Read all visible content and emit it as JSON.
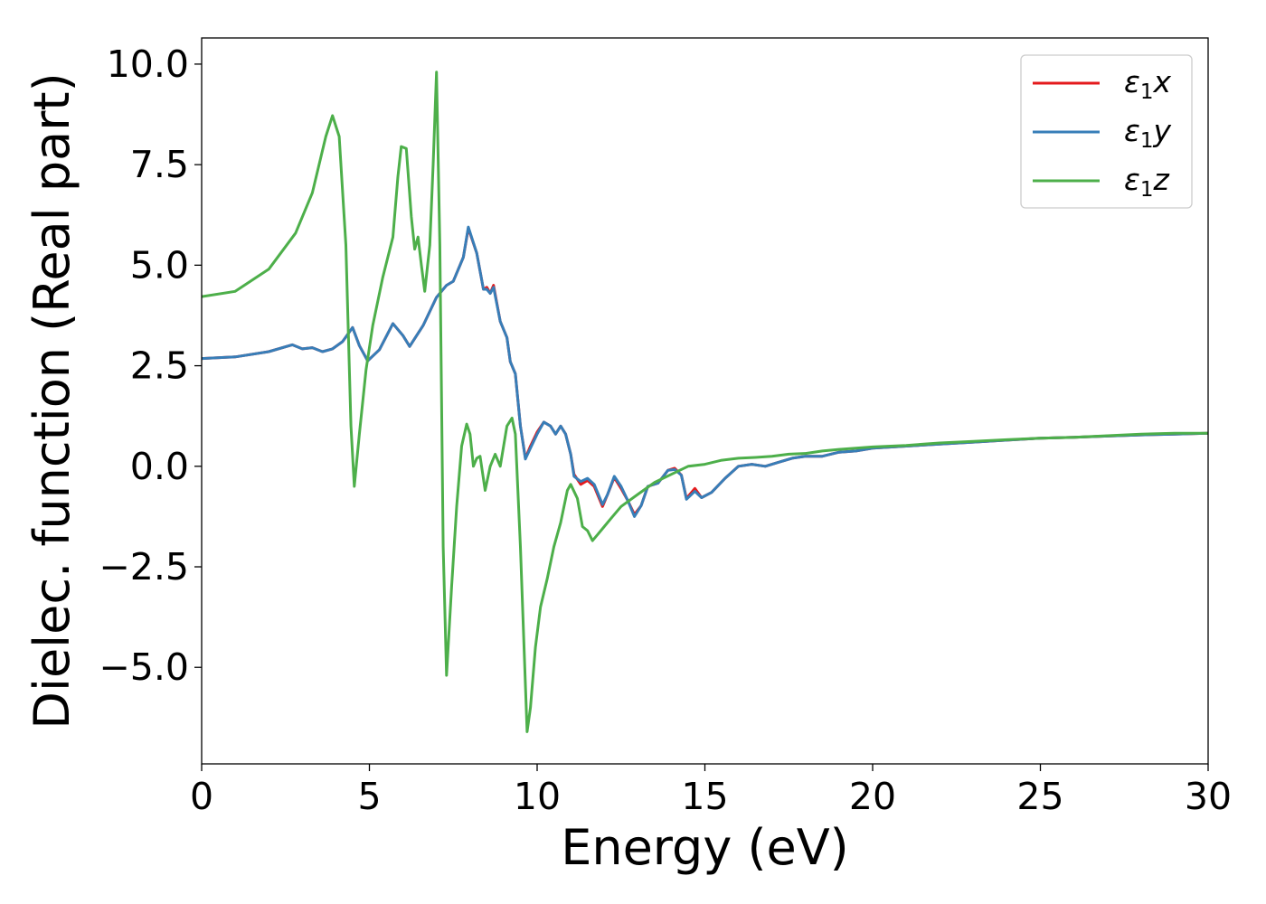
{
  "chart_data": {
    "type": "line",
    "xlabel": "Energy (eV)",
    "ylabel": "Dielec. function (Real part)",
    "xlim": [
      0,
      30
    ],
    "ylim": [
      -7.4,
      10.65
    ],
    "x_ticks": [
      0,
      5,
      10,
      15,
      20,
      25,
      30
    ],
    "x_tick_labels": [
      "0",
      "5",
      "10",
      "15",
      "20",
      "25",
      "30"
    ],
    "y_ticks": [
      10.0,
      7.5,
      5.0,
      2.5,
      0.0,
      -2.5,
      -5.0
    ],
    "y_tick_labels": [
      "10.0",
      "7.5",
      "5.0",
      "2.5",
      "0.0",
      "−2.5",
      "−5.0"
    ],
    "grid": false,
    "legend_position": "top-right",
    "series": [
      {
        "name": "ε₁x",
        "legend_main": "ε",
        "legend_sub": "1",
        "legend_var": "x",
        "color": "#e41a1c",
        "points": [
          [
            0,
            2.68
          ],
          [
            1,
            2.72
          ],
          [
            2,
            2.85
          ],
          [
            2.7,
            3.02
          ],
          [
            3.0,
            2.92
          ],
          [
            3.3,
            2.95
          ],
          [
            3.6,
            2.85
          ],
          [
            3.9,
            2.92
          ],
          [
            4.2,
            3.1
          ],
          [
            4.5,
            3.45
          ],
          [
            4.7,
            3.0
          ],
          [
            4.95,
            2.62
          ],
          [
            5.3,
            2.9
          ],
          [
            5.7,
            3.55
          ],
          [
            6.0,
            3.25
          ],
          [
            6.2,
            2.98
          ],
          [
            6.6,
            3.5
          ],
          [
            7.0,
            4.2
          ],
          [
            7.3,
            4.5
          ],
          [
            7.5,
            4.6
          ],
          [
            7.8,
            5.2
          ],
          [
            7.95,
            5.92
          ],
          [
            8.2,
            5.3
          ],
          [
            8.4,
            4.4
          ],
          [
            8.5,
            4.45
          ],
          [
            8.6,
            4.3
          ],
          [
            8.7,
            4.5
          ],
          [
            8.9,
            3.6
          ],
          [
            9.1,
            3.2
          ],
          [
            9.2,
            2.6
          ],
          [
            9.35,
            2.3
          ],
          [
            9.5,
            1.0
          ],
          [
            9.65,
            0.2
          ],
          [
            9.8,
            0.5
          ],
          [
            10.0,
            0.85
          ],
          [
            10.2,
            1.1
          ],
          [
            10.4,
            1.0
          ],
          [
            10.55,
            0.8
          ],
          [
            10.7,
            1.0
          ],
          [
            10.85,
            0.8
          ],
          [
            11.0,
            0.3
          ],
          [
            11.1,
            -0.2
          ],
          [
            11.3,
            -0.45
          ],
          [
            11.5,
            -0.35
          ],
          [
            11.7,
            -0.5
          ],
          [
            11.95,
            -1.0
          ],
          [
            12.1,
            -0.7
          ],
          [
            12.3,
            -0.28
          ],
          [
            12.5,
            -0.55
          ],
          [
            12.7,
            -0.85
          ],
          [
            12.9,
            -1.2
          ],
          [
            13.1,
            -0.98
          ],
          [
            13.3,
            -0.5
          ],
          [
            13.6,
            -0.42
          ],
          [
            13.9,
            -0.1
          ],
          [
            14.1,
            -0.05
          ],
          [
            14.3,
            -0.22
          ],
          [
            14.45,
            -0.8
          ],
          [
            14.7,
            -0.55
          ],
          [
            14.9,
            -0.78
          ],
          [
            15.2,
            -0.65
          ],
          [
            15.6,
            -0.3
          ],
          [
            16.0,
            0.0
          ],
          [
            16.4,
            0.05
          ],
          [
            16.8,
            0.0
          ],
          [
            17.2,
            0.1
          ],
          [
            17.6,
            0.2
          ],
          [
            18.0,
            0.25
          ],
          [
            18.5,
            0.25
          ],
          [
            19.0,
            0.35
          ],
          [
            19.5,
            0.38
          ],
          [
            20.0,
            0.45
          ],
          [
            21.0,
            0.5
          ],
          [
            22.0,
            0.55
          ],
          [
            23.0,
            0.6
          ],
          [
            24.0,
            0.65
          ],
          [
            25.0,
            0.7
          ],
          [
            26.0,
            0.72
          ],
          [
            27.0,
            0.75
          ],
          [
            28.0,
            0.78
          ],
          [
            29.0,
            0.8
          ],
          [
            30.0,
            0.82
          ]
        ]
      },
      {
        "name": "ε₁y",
        "legend_main": "ε",
        "legend_sub": "1",
        "legend_var": "y",
        "color": "#377eb8",
        "points": [
          [
            0,
            2.68
          ],
          [
            1,
            2.72
          ],
          [
            2,
            2.85
          ],
          [
            2.7,
            3.02
          ],
          [
            3.0,
            2.92
          ],
          [
            3.3,
            2.95
          ],
          [
            3.6,
            2.85
          ],
          [
            3.9,
            2.92
          ],
          [
            4.2,
            3.1
          ],
          [
            4.5,
            3.45
          ],
          [
            4.7,
            3.0
          ],
          [
            4.95,
            2.62
          ],
          [
            5.3,
            2.9
          ],
          [
            5.7,
            3.55
          ],
          [
            6.0,
            3.25
          ],
          [
            6.2,
            2.98
          ],
          [
            6.6,
            3.5
          ],
          [
            7.0,
            4.2
          ],
          [
            7.3,
            4.5
          ],
          [
            7.5,
            4.6
          ],
          [
            7.8,
            5.2
          ],
          [
            7.95,
            5.95
          ],
          [
            8.2,
            5.3
          ],
          [
            8.4,
            4.4
          ],
          [
            8.5,
            4.4
          ],
          [
            8.6,
            4.3
          ],
          [
            8.7,
            4.45
          ],
          [
            8.9,
            3.6
          ],
          [
            9.1,
            3.2
          ],
          [
            9.2,
            2.6
          ],
          [
            9.35,
            2.3
          ],
          [
            9.5,
            1.0
          ],
          [
            9.65,
            0.18
          ],
          [
            9.8,
            0.45
          ],
          [
            10.0,
            0.8
          ],
          [
            10.2,
            1.1
          ],
          [
            10.4,
            1.0
          ],
          [
            10.55,
            0.8
          ],
          [
            10.7,
            1.0
          ],
          [
            10.85,
            0.8
          ],
          [
            11.0,
            0.3
          ],
          [
            11.1,
            -0.25
          ],
          [
            11.3,
            -0.38
          ],
          [
            11.5,
            -0.3
          ],
          [
            11.7,
            -0.45
          ],
          [
            11.95,
            -0.95
          ],
          [
            12.1,
            -0.7
          ],
          [
            12.3,
            -0.25
          ],
          [
            12.5,
            -0.5
          ],
          [
            12.7,
            -0.85
          ],
          [
            12.9,
            -1.25
          ],
          [
            13.1,
            -0.98
          ],
          [
            13.3,
            -0.5
          ],
          [
            13.6,
            -0.42
          ],
          [
            13.9,
            -0.1
          ],
          [
            14.1,
            -0.08
          ],
          [
            14.3,
            -0.22
          ],
          [
            14.45,
            -0.82
          ],
          [
            14.7,
            -0.62
          ],
          [
            14.9,
            -0.78
          ],
          [
            15.2,
            -0.65
          ],
          [
            15.6,
            -0.3
          ],
          [
            16.0,
            0.0
          ],
          [
            16.4,
            0.05
          ],
          [
            16.8,
            0.0
          ],
          [
            17.2,
            0.1
          ],
          [
            17.6,
            0.2
          ],
          [
            18.0,
            0.25
          ],
          [
            18.5,
            0.25
          ],
          [
            19.0,
            0.35
          ],
          [
            19.5,
            0.38
          ],
          [
            20.0,
            0.45
          ],
          [
            21.0,
            0.5
          ],
          [
            22.0,
            0.55
          ],
          [
            23.0,
            0.6
          ],
          [
            24.0,
            0.65
          ],
          [
            25.0,
            0.7
          ],
          [
            26.0,
            0.72
          ],
          [
            27.0,
            0.75
          ],
          [
            28.0,
            0.78
          ],
          [
            29.0,
            0.8
          ],
          [
            30.0,
            0.82
          ]
        ]
      },
      {
        "name": "ε₁z",
        "legend_main": "ε",
        "legend_sub": "1",
        "legend_var": "z",
        "color": "#4daf4a",
        "points": [
          [
            0,
            4.22
          ],
          [
            1,
            4.35
          ],
          [
            2,
            4.9
          ],
          [
            2.8,
            5.8
          ],
          [
            3.3,
            6.8
          ],
          [
            3.7,
            8.2
          ],
          [
            3.9,
            8.72
          ],
          [
            4.1,
            8.2
          ],
          [
            4.3,
            5.5
          ],
          [
            4.45,
            1.0
          ],
          [
            4.55,
            -0.5
          ],
          [
            4.7,
            0.8
          ],
          [
            4.9,
            2.4
          ],
          [
            5.1,
            3.5
          ],
          [
            5.4,
            4.7
          ],
          [
            5.7,
            5.7
          ],
          [
            5.85,
            7.2
          ],
          [
            5.95,
            7.95
          ],
          [
            6.1,
            7.9
          ],
          [
            6.25,
            6.2
          ],
          [
            6.35,
            5.4
          ],
          [
            6.45,
            5.7
          ],
          [
            6.55,
            5.0
          ],
          [
            6.65,
            4.35
          ],
          [
            6.8,
            5.5
          ],
          [
            6.9,
            7.5
          ],
          [
            7.0,
            9.8
          ],
          [
            7.1,
            5.5
          ],
          [
            7.2,
            -2.0
          ],
          [
            7.3,
            -5.2
          ],
          [
            7.45,
            -3.0
          ],
          [
            7.6,
            -1.0
          ],
          [
            7.75,
            0.5
          ],
          [
            7.9,
            1.05
          ],
          [
            8.0,
            0.8
          ],
          [
            8.1,
            0.0
          ],
          [
            8.2,
            0.2
          ],
          [
            8.3,
            0.25
          ],
          [
            8.45,
            -0.6
          ],
          [
            8.6,
            0.0
          ],
          [
            8.75,
            0.3
          ],
          [
            8.9,
            0.0
          ],
          [
            9.1,
            1.0
          ],
          [
            9.25,
            1.2
          ],
          [
            9.35,
            0.8
          ],
          [
            9.5,
            -2.0
          ],
          [
            9.7,
            -6.6
          ],
          [
            9.8,
            -6.0
          ],
          [
            9.95,
            -4.5
          ],
          [
            10.1,
            -3.5
          ],
          [
            10.3,
            -2.8
          ],
          [
            10.5,
            -2.0
          ],
          [
            10.7,
            -1.4
          ],
          [
            10.9,
            -0.6
          ],
          [
            11.0,
            -0.45
          ],
          [
            11.2,
            -0.8
          ],
          [
            11.35,
            -1.5
          ],
          [
            11.5,
            -1.6
          ],
          [
            11.65,
            -1.85
          ],
          [
            11.8,
            -1.7
          ],
          [
            12.0,
            -1.5
          ],
          [
            12.2,
            -1.3
          ],
          [
            12.5,
            -1.0
          ],
          [
            13.0,
            -0.7
          ],
          [
            13.5,
            -0.4
          ],
          [
            14.0,
            -0.2
          ],
          [
            14.5,
            0.0
          ],
          [
            15.0,
            0.05
          ],
          [
            15.5,
            0.15
          ],
          [
            16.0,
            0.2
          ],
          [
            16.5,
            0.22
          ],
          [
            17.0,
            0.25
          ],
          [
            17.5,
            0.3
          ],
          [
            18.0,
            0.32
          ],
          [
            18.5,
            0.38
          ],
          [
            19.0,
            0.42
          ],
          [
            20.0,
            0.48
          ],
          [
            21.0,
            0.52
          ],
          [
            22.0,
            0.58
          ],
          [
            23.0,
            0.62
          ],
          [
            24.0,
            0.66
          ],
          [
            25.0,
            0.7
          ],
          [
            26.0,
            0.72
          ],
          [
            27.0,
            0.76
          ],
          [
            28.0,
            0.8
          ],
          [
            29.0,
            0.82
          ],
          [
            30.0,
            0.82
          ]
        ]
      }
    ]
  }
}
